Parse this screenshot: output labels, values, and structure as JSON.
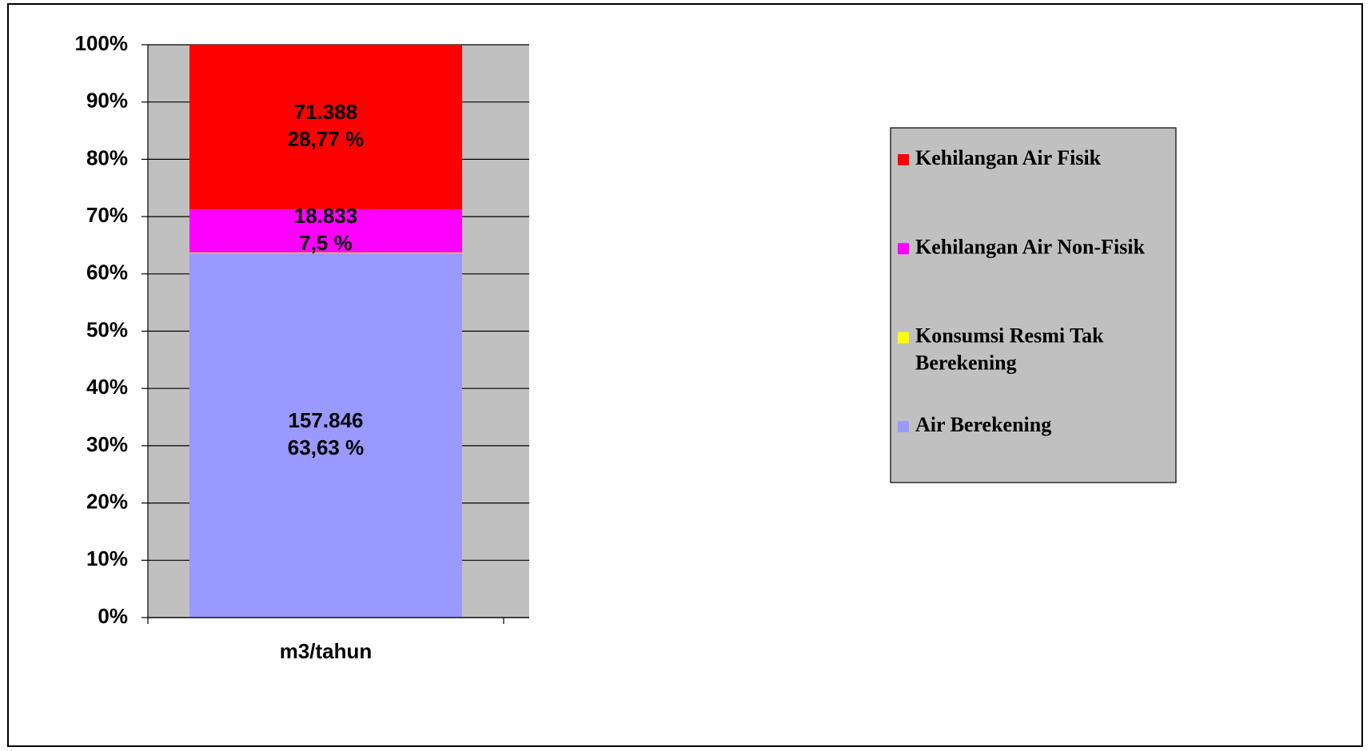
{
  "chart_data": {
    "type": "stacked_bar_percent",
    "categories": [
      "m3/tahun"
    ],
    "series": [
      {
        "name": "Air Berekening",
        "color": "#9999ff",
        "values": [
          63.63
        ],
        "value_labels": [
          "63,63 %"
        ],
        "amount_labels": [
          "157.846"
        ]
      },
      {
        "name": "Konsumsi Resmi Tak Berekening",
        "color": "#ffff00",
        "values": [
          0.1
        ]
      },
      {
        "name": "Kehilangan Air Non-Fisik",
        "color": "#ff00ff",
        "values": [
          7.5
        ],
        "value_labels": [
          "7,5 %"
        ],
        "amount_labels": [
          "18.833"
        ]
      },
      {
        "name": "Kehilangan Air Fisik",
        "color": "#ff0000",
        "values": [
          28.77
        ],
        "value_labels": [
          "28,77 %"
        ],
        "amount_labels": [
          "71.388"
        ]
      }
    ],
    "ylim": [
      0,
      100
    ],
    "yticks": [
      {
        "value": 0,
        "label": "0%"
      },
      {
        "value": 10,
        "label": "10%"
      },
      {
        "value": 20,
        "label": "20%"
      },
      {
        "value": 30,
        "label": "30%"
      },
      {
        "value": 40,
        "label": "40%"
      },
      {
        "value": 50,
        "label": "50%"
      },
      {
        "value": 60,
        "label": "60%"
      },
      {
        "value": 70,
        "label": "70%"
      },
      {
        "value": 80,
        "label": "80%"
      },
      {
        "value": 90,
        "label": "90%"
      },
      {
        "value": 100,
        "label": "100%"
      }
    ],
    "grid": true,
    "plot_background": "#c0c0c0",
    "legend": "right"
  }
}
